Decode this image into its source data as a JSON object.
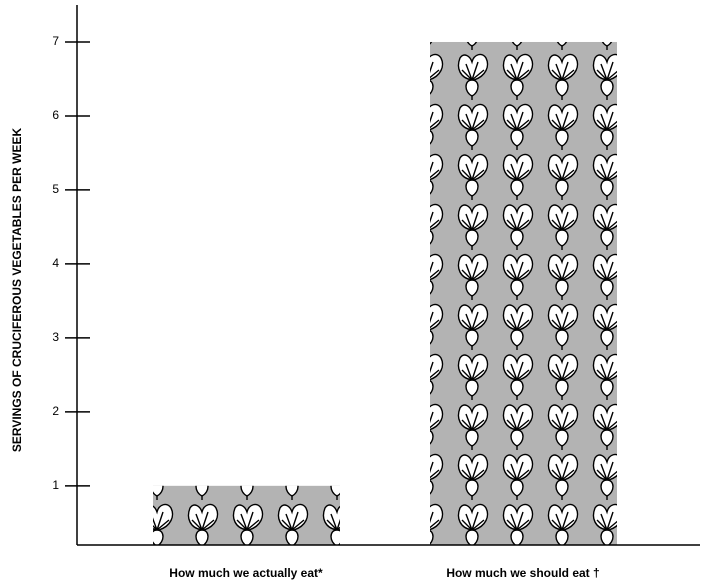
{
  "chart_data": {
    "type": "bar",
    "y_label": "SERVINGS OF CRUCIFEROUS VEGETABLES PER WEEK",
    "categories": [
      "How much we actually eat*",
      "How much we should eat †"
    ],
    "values": [
      1,
      7
    ],
    "color": "#b3b3b3",
    "ylim": [
      0.2,
      7.5
    ],
    "yticks": [
      1,
      2,
      3,
      4,
      5,
      6,
      7
    ]
  }
}
